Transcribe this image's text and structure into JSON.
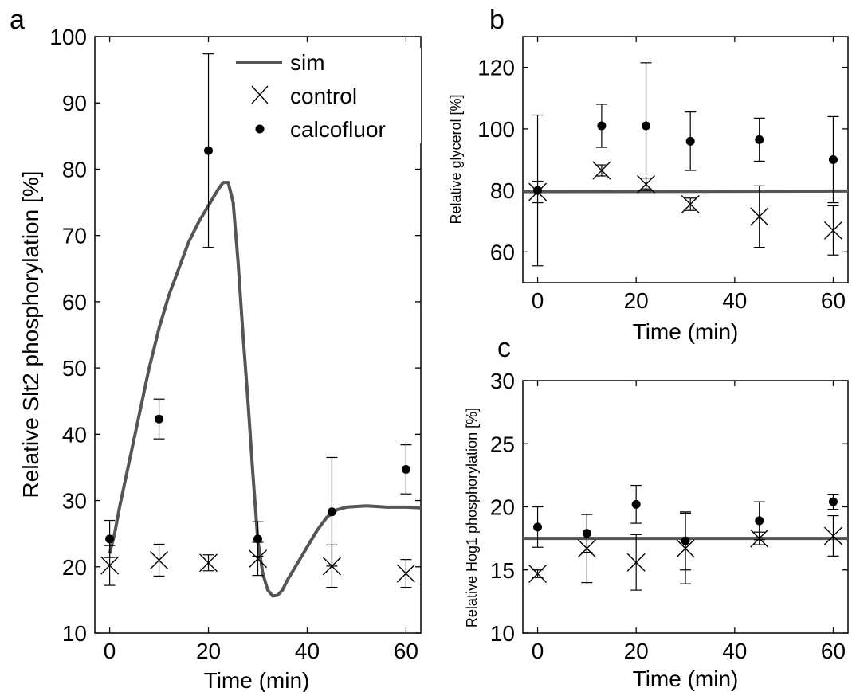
{
  "figure": {
    "panels": [
      {
        "id": "a",
        "letter": "a"
      },
      {
        "id": "b",
        "letter": "b"
      },
      {
        "id": "c",
        "letter": "c"
      }
    ]
  },
  "chart_data": [
    {
      "panel": "a",
      "type": "scatter",
      "xlabel": "Time (min)",
      "ylabel": "Relative Slt2 phosphorylation [%]",
      "xlim": [
        -3,
        63
      ],
      "ylim": [
        10,
        100
      ],
      "xticks": [
        0,
        20,
        40,
        60
      ],
      "yticks": [
        10,
        20,
        30,
        40,
        50,
        60,
        70,
        80,
        90,
        100
      ],
      "grid": false,
      "legend_position": "top-right",
      "legend": [
        "sim",
        "control",
        "calcofluor"
      ],
      "series": [
        {
          "name": "sim",
          "style": "line",
          "color": "#555555",
          "x": [
            0,
            1,
            2,
            4,
            6,
            8,
            10,
            12,
            14,
            16,
            18,
            20,
            22,
            23,
            24,
            25,
            26,
            27,
            28,
            29,
            30,
            31,
            32,
            33,
            34,
            35,
            36,
            38,
            40,
            42,
            44,
            46,
            48,
            50,
            52,
            54,
            56,
            58,
            60,
            63
          ],
          "y": [
            22,
            25,
            29,
            36,
            43,
            50,
            56,
            61,
            65,
            69,
            72,
            74.5,
            77,
            78,
            78,
            75,
            66,
            55,
            45,
            34,
            24,
            19,
            16.5,
            15.6,
            15.7,
            16.5,
            18,
            20.5,
            23,
            25.5,
            27.5,
            28.6,
            29,
            29.1,
            29.2,
            29.1,
            29,
            29,
            29,
            28.9
          ]
        },
        {
          "name": "control",
          "style": "x-marker",
          "x": [
            0,
            10,
            20,
            30,
            45,
            60
          ],
          "y": [
            20.2,
            21,
            20.6,
            21.2,
            20.1,
            19
          ],
          "err": [
            3.0,
            2.4,
            1.2,
            2.5,
            3.2,
            2.1
          ]
        },
        {
          "name": "calcofluor",
          "style": "dot-marker",
          "x": [
            0,
            10,
            20,
            30,
            45,
            60
          ],
          "y": [
            24.2,
            42.3,
            82.8,
            24.2,
            28.3,
            34.7
          ],
          "err": [
            2.8,
            3.0,
            14.6,
            2.6,
            8.2,
            3.7
          ]
        }
      ]
    },
    {
      "panel": "b",
      "type": "scatter",
      "xlabel": "Time (min)",
      "ylabel": "Relative glycerol [%]",
      "xlim": [
        -3,
        63
      ],
      "ylim": [
        50,
        130
      ],
      "xticks": [
        0,
        20,
        40,
        60
      ],
      "yticks": [
        60,
        80,
        100,
        120
      ],
      "grid": false,
      "series": [
        {
          "name": "sim",
          "style": "line",
          "color": "#555555",
          "x": [
            -3,
            63
          ],
          "y": [
            79.6,
            79.8
          ]
        },
        {
          "name": "control",
          "style": "x-marker",
          "x": [
            0,
            13,
            22,
            31,
            45,
            60
          ],
          "y": [
            79.5,
            86.5,
            82,
            75.5,
            71.5,
            67
          ],
          "err": [
            3.5,
            1.8,
            2.0,
            2.0,
            10.0,
            8.0
          ]
        },
        {
          "name": "calcofluor",
          "style": "dot-marker",
          "x": [
            0,
            13,
            22,
            31,
            45,
            60
          ],
          "y": [
            80,
            101,
            101,
            96,
            96.5,
            90
          ],
          "err": [
            24.5,
            7.0,
            20.5,
            9.5,
            7.0,
            14.0
          ]
        }
      ]
    },
    {
      "panel": "c",
      "type": "scatter",
      "xlabel": "Time (min)",
      "ylabel": "Relative Hog1 phosphorylation [%]",
      "xlim": [
        -3,
        63
      ],
      "ylim": [
        10,
        30
      ],
      "xticks": [
        0,
        20,
        40,
        60
      ],
      "yticks": [
        10,
        15,
        20,
        25,
        30
      ],
      "grid": false,
      "series": [
        {
          "name": "sim",
          "style": "line",
          "color": "#555555",
          "x": [
            -3,
            63
          ],
          "y": [
            17.5,
            17.5
          ]
        },
        {
          "name": "control",
          "style": "x-marker",
          "x": [
            0,
            10,
            20,
            30,
            45,
            60
          ],
          "y": [
            14.7,
            16.7,
            15.6,
            16.7,
            17.5,
            17.7
          ],
          "err": [
            0.3,
            2.7,
            2.2,
            2.8,
            0.5,
            1.6
          ]
        },
        {
          "name": "calcofluor",
          "style": "dot-marker",
          "x": [
            0,
            10,
            20,
            30,
            45,
            60
          ],
          "y": [
            18.4,
            17.9,
            20.2,
            17.3,
            18.9,
            20.4
          ],
          "err": [
            1.6,
            1.5,
            1.5,
            2.3,
            1.5,
            0.6
          ]
        }
      ]
    }
  ]
}
